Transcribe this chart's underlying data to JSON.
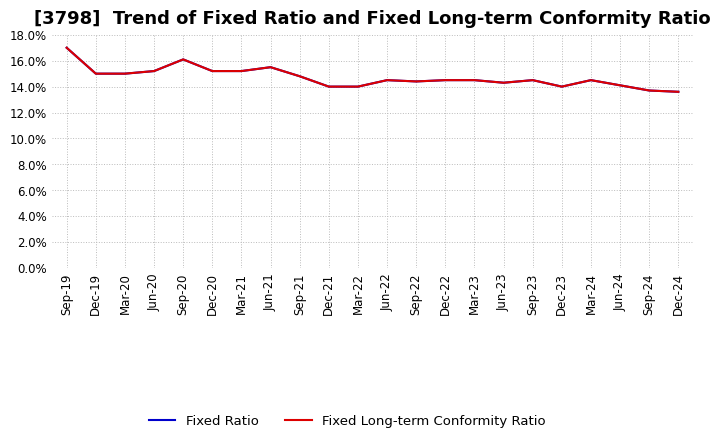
{
  "title": "[3798]  Trend of Fixed Ratio and Fixed Long-term Conformity Ratio",
  "x_labels": [
    "Sep-19",
    "Dec-19",
    "Mar-20",
    "Jun-20",
    "Sep-20",
    "Dec-20",
    "Mar-21",
    "Jun-21",
    "Sep-21",
    "Dec-21",
    "Mar-22",
    "Jun-22",
    "Sep-22",
    "Dec-22",
    "Mar-23",
    "Jun-23",
    "Sep-23",
    "Dec-23",
    "Mar-24",
    "Jun-24",
    "Sep-24",
    "Dec-24"
  ],
  "fixed_ratio": [
    17.0,
    15.0,
    15.0,
    15.2,
    16.1,
    15.2,
    15.2,
    15.5,
    14.8,
    14.0,
    14.0,
    14.5,
    14.4,
    14.5,
    14.5,
    14.3,
    14.5,
    14.0,
    14.5,
    14.1,
    13.7,
    13.6
  ],
  "fixed_lt_conformity": [
    17.0,
    15.0,
    15.0,
    15.2,
    16.1,
    15.2,
    15.2,
    15.5,
    14.8,
    14.0,
    14.0,
    14.5,
    14.4,
    14.5,
    14.5,
    14.3,
    14.5,
    14.0,
    14.5,
    14.1,
    13.7,
    13.6
  ],
  "fixed_ratio_color": "#0000cc",
  "fixed_lt_color": "#dd0000",
  "ylim": [
    0,
    18
  ],
  "yticks": [
    0,
    2,
    4,
    6,
    8,
    10,
    12,
    14,
    16,
    18
  ],
  "background_color": "#ffffff",
  "grid_color": "#bbbbbb",
  "legend_fixed_ratio": "Fixed Ratio",
  "legend_fixed_lt": "Fixed Long-term Conformity Ratio",
  "title_fontsize": 13,
  "axis_fontsize": 8.5,
  "legend_fontsize": 9.5
}
